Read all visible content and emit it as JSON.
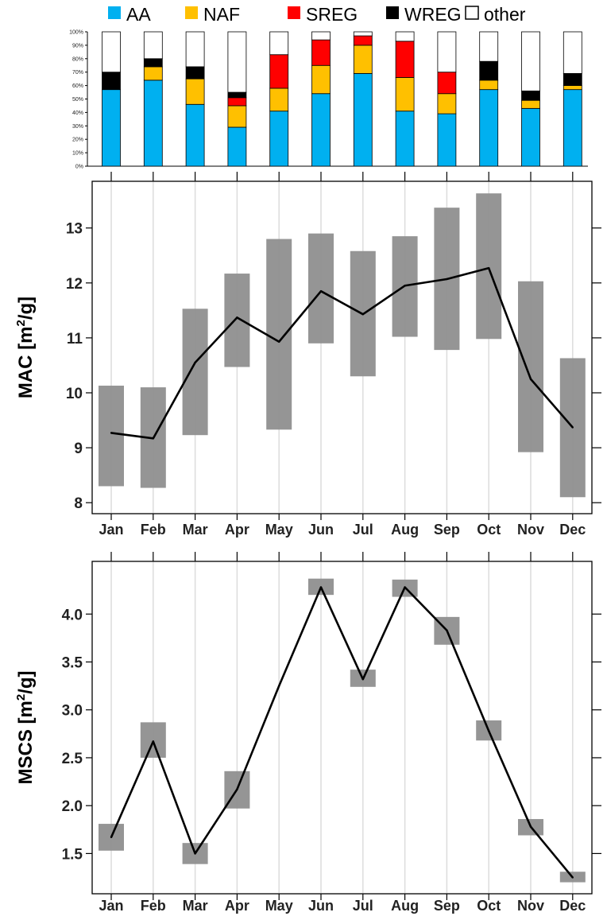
{
  "chart_data": [
    {
      "type": "bar",
      "stacked": true,
      "percent": true,
      "categories": [
        "Jan",
        "Feb",
        "Mar",
        "Apr",
        "May",
        "Jun",
        "Jul",
        "Aug",
        "Sep",
        "Oct",
        "Nov",
        "Dec"
      ],
      "series": [
        {
          "name": "AA",
          "color": "#00b0f0",
          "values": [
            57,
            64,
            46,
            29,
            41,
            54,
            69,
            41,
            39,
            57,
            43,
            57
          ]
        },
        {
          "name": "NAF",
          "color": "#ffc000",
          "values": [
            0,
            10,
            19,
            16,
            17,
            21,
            21,
            25,
            15,
            7,
            6,
            3
          ]
        },
        {
          "name": "SREG",
          "color": "#ff0000",
          "values": [
            0,
            0,
            0,
            6,
            25,
            19,
            7,
            27,
            16,
            0,
            0,
            0
          ]
        },
        {
          "name": "WREG",
          "color": "#000000",
          "values": [
            13,
            6,
            9,
            4,
            0,
            0,
            0,
            0,
            0,
            14,
            7,
            9
          ]
        },
        {
          "name": "other",
          "color": "#ffffff",
          "values": [
            30,
            20,
            26,
            45,
            17,
            6,
            3,
            7,
            30,
            22,
            44,
            31
          ]
        }
      ],
      "yticks": [
        "0%",
        "10%",
        "20%",
        "30%",
        "40%",
        "50%",
        "60%",
        "70%",
        "80%",
        "90%",
        "100%"
      ],
      "ylim": [
        0,
        100
      ],
      "legend": "top"
    },
    {
      "type": "line",
      "categories": [
        "Jan",
        "Feb",
        "Mar",
        "Apr",
        "May",
        "Jun",
        "Jul",
        "Aug",
        "Sep",
        "Oct",
        "Nov",
        "Dec"
      ],
      "values": [
        9.27,
        9.17,
        10.55,
        11.37,
        10.93,
        11.85,
        11.43,
        11.95,
        12.07,
        12.27,
        10.25,
        9.37
      ],
      "ranges": [
        [
          8.3,
          10.13
        ],
        [
          8.27,
          10.1
        ],
        [
          9.23,
          11.53
        ],
        [
          10.47,
          12.17
        ],
        [
          9.33,
          12.8
        ],
        [
          10.9,
          12.9
        ],
        [
          10.3,
          12.58
        ],
        [
          11.02,
          12.85
        ],
        [
          10.78,
          13.37
        ],
        [
          10.98,
          13.63
        ],
        [
          8.92,
          12.03
        ],
        [
          8.1,
          10.63
        ]
      ],
      "yticks": [
        "8",
        "9",
        "10",
        "11",
        "12",
        "13"
      ],
      "ylim": [
        7.8,
        13.85
      ],
      "ylabel_main": "MAC [m",
      "ylabel_sup": "2",
      "ylabel_tail": "/g]",
      "grid": true
    },
    {
      "type": "line",
      "categories": [
        "Jan",
        "Feb",
        "Mar",
        "Apr",
        "May",
        "Jun",
        "Jul",
        "Aug",
        "Sep",
        "Oct",
        "Nov",
        "Dec"
      ],
      "values": [
        1.67,
        2.67,
        1.5,
        2.17,
        3.25,
        4.28,
        3.32,
        4.28,
        3.83,
        2.78,
        1.78,
        1.25
      ],
      "markers": [
        {
          "month": "Jan",
          "low": 1.53,
          "high": 1.81
        },
        {
          "month": "Feb",
          "low": 2.5,
          "high": 2.87
        },
        {
          "month": "Mar",
          "low": 1.39,
          "high": 1.61
        },
        {
          "month": "Apr",
          "low": 1.97,
          "high": 2.36
        },
        {
          "month": "Jun",
          "low": 4.2,
          "high": 4.37
        },
        {
          "month": "Jul",
          "low": 3.24,
          "high": 3.42
        },
        {
          "month": "Aug",
          "low": 4.18,
          "high": 4.36
        },
        {
          "month": "Sep",
          "low": 3.68,
          "high": 3.97
        },
        {
          "month": "Oct",
          "low": 2.68,
          "high": 2.89
        },
        {
          "month": "Nov",
          "low": 1.69,
          "high": 1.86
        },
        {
          "month": "Dec",
          "low": 1.2,
          "high": 1.31
        }
      ],
      "yticks": [
        "1.5",
        "2.0",
        "2.5",
        "3.0",
        "3.5",
        "4.0"
      ],
      "ylim": [
        1.08,
        4.55
      ],
      "ylabel_main": "MSCS [m",
      "ylabel_sup": "2",
      "ylabel_tail": "/g]",
      "grid": true
    }
  ]
}
